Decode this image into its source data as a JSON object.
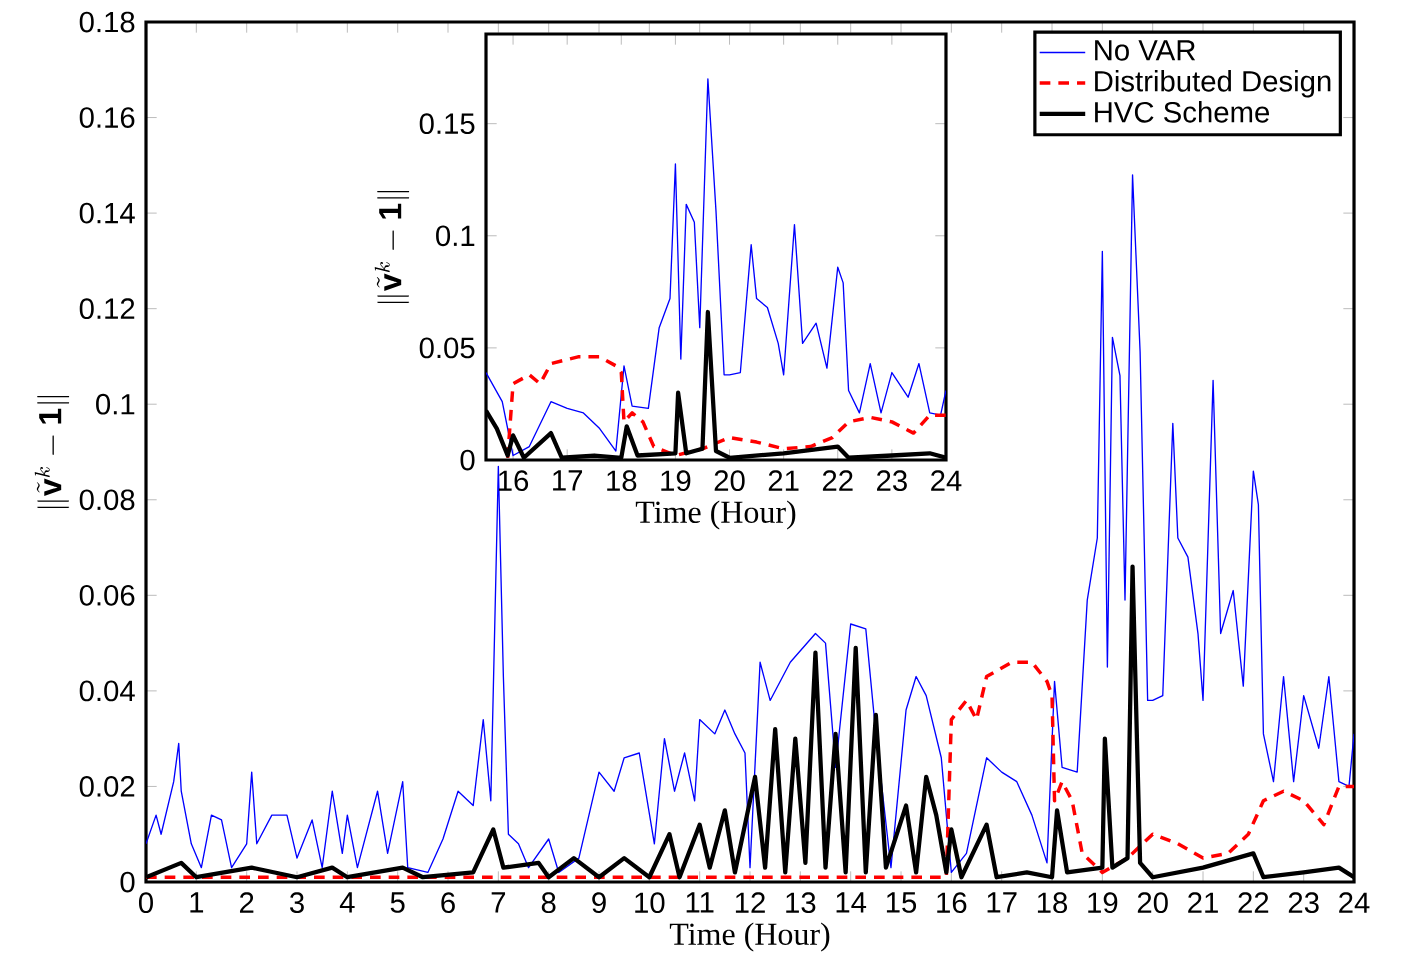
{
  "chart_data": [
    {
      "type": "line",
      "xlabel": "Time (Hour)",
      "ylabel": "\\|\\tilde{\\mathbf{v}}^k-\\mathbf{1}\\|",
      "xlim": [
        0,
        24
      ],
      "ylim": [
        0,
        0.18
      ],
      "xticks": [
        0,
        1,
        2,
        3,
        4,
        5,
        6,
        7,
        8,
        9,
        10,
        11,
        12,
        13,
        14,
        15,
        16,
        17,
        18,
        19,
        20,
        21,
        22,
        23,
        24
      ],
      "yticks": [
        0,
        0.02,
        0.04,
        0.06,
        0.08,
        0.1,
        0.12,
        0.14,
        0.16,
        0.18
      ],
      "legend": "top right",
      "grid": false,
      "series": [
        {
          "name": "No VAR",
          "color": "#0000ff",
          "line_style": "solid",
          "x": [
            0,
            0.2,
            0.3,
            0.55,
            0.65,
            0.7,
            0.9,
            1.1,
            1.3,
            1.5,
            1.7,
            2.0,
            2.1,
            2.2,
            2.5,
            2.8,
            3.0,
            3.3,
            3.5,
            3.7,
            3.9,
            4.0,
            4.2,
            4.6,
            4.8,
            5.1,
            5.2,
            5.6,
            5.9,
            6.2,
            6.5,
            6.7,
            6.85,
            7.0,
            7.1,
            7.2,
            7.4,
            7.6,
            8.0,
            8.2,
            8.6,
            9.0,
            9.3,
            9.5,
            9.8,
            10.1,
            10.3,
            10.5,
            10.7,
            10.9,
            11.0,
            11.3,
            11.5,
            11.7,
            11.9,
            12.0,
            12.2,
            12.4,
            12.8,
            13.3,
            13.5,
            13.7,
            14.0,
            14.3,
            14.5,
            14.8,
            15.1,
            15.3,
            15.5,
            15.8,
            16.0,
            16.3,
            16.7,
            17.0,
            17.3,
            17.6,
            17.9,
            18.05,
            18.2,
            18.5,
            18.7,
            18.9,
            19.0,
            19.1,
            19.2,
            19.35,
            19.45,
            19.6,
            19.75,
            19.9,
            20.0,
            20.2,
            20.4,
            20.5,
            20.7,
            20.9,
            21.0,
            21.2,
            21.35,
            21.6,
            21.8,
            22.0,
            22.1,
            22.2,
            22.4,
            22.6,
            22.8,
            23.0,
            23.3,
            23.5,
            23.7,
            23.9,
            24
          ],
          "values": [
            0.008,
            0.014,
            0.01,
            0.021,
            0.029,
            0.019,
            0.008,
            0.003,
            0.014,
            0.013,
            0.003,
            0.008,
            0.023,
            0.008,
            0.014,
            0.014,
            0.005,
            0.013,
            0.003,
            0.019,
            0.006,
            0.014,
            0.003,
            0.019,
            0.006,
            0.021,
            0.003,
            0.002,
            0.009,
            0.019,
            0.016,
            0.034,
            0.017,
            0.087,
            0.043,
            0.01,
            0.008,
            0.003,
            0.009,
            0.002,
            0.005,
            0.023,
            0.019,
            0.026,
            0.027,
            0.008,
            0.03,
            0.019,
            0.027,
            0.017,
            0.034,
            0.031,
            0.036,
            0.031,
            0.027,
            0.003,
            0.046,
            0.038,
            0.046,
            0.052,
            0.05,
            0.024,
            0.054,
            0.053,
            0.031,
            0.003,
            0.036,
            0.043,
            0.039,
            0.026,
            0.002,
            0.006,
            0.026,
            0.023,
            0.021,
            0.014,
            0.004,
            0.042,
            0.024,
            0.023,
            0.059,
            0.072,
            0.132,
            0.045,
            0.114,
            0.106,
            0.059,
            0.148,
            0.111,
            0.038,
            0.038,
            0.039,
            0.096,
            0.072,
            0.068,
            0.052,
            0.038,
            0.105,
            0.052,
            0.061,
            0.041,
            0.086,
            0.079,
            0.031,
            0.021,
            0.043,
            0.021,
            0.039,
            0.028,
            0.043,
            0.021,
            0.02,
            0.031
          ]
        },
        {
          "name": "Distributed Design",
          "color": "#ff0000",
          "line_style": "dashed",
          "x": [
            0,
            15.9,
            16.0,
            16.3,
            16.5,
            16.7,
            17.2,
            17.6,
            17.9,
            18.0,
            18.05,
            18.2,
            18.4,
            18.6,
            19.0,
            19.5,
            20.0,
            20.5,
            21.0,
            21.5,
            21.9,
            22.2,
            22.6,
            23.0,
            23.4,
            23.7,
            24
          ],
          "values": [
            0.001,
            0.001,
            0.034,
            0.038,
            0.034,
            0.043,
            0.046,
            0.046,
            0.042,
            0.039,
            0.017,
            0.021,
            0.017,
            0.006,
            0.002,
            0.005,
            0.01,
            0.008,
            0.005,
            0.006,
            0.01,
            0.017,
            0.019,
            0.017,
            0.012,
            0.02,
            0.02
          ]
        },
        {
          "name": "HVC Scheme",
          "color": "#000000",
          "line_style": "solid",
          "x": [
            0,
            0.7,
            1,
            2.1,
            3,
            3.7,
            4,
            5.1,
            5.5,
            6.5,
            6.9,
            7.1,
            7.8,
            8,
            8.5,
            9,
            9.5,
            10,
            10.4,
            10.6,
            11.0,
            11.2,
            11.5,
            11.7,
            12.1,
            12.3,
            12.5,
            12.7,
            12.9,
            13.1,
            13.3,
            13.5,
            13.7,
            13.9,
            14.1,
            14.3,
            14.5,
            14.7,
            15.1,
            15.3,
            15.5,
            15.7,
            15.9,
            16.0,
            16.2,
            16.7,
            16.9,
            17.5,
            18.0,
            18.1,
            18.3,
            19.0,
            19.05,
            19.2,
            19.5,
            19.6,
            19.75,
            20,
            21,
            22,
            22.2,
            23,
            23.7,
            24
          ],
          "values": [
            0.001,
            0.004,
            0.001,
            0.003,
            0.001,
            0.003,
            0.001,
            0.003,
            0.001,
            0.002,
            0.011,
            0.003,
            0.004,
            0.001,
            0.005,
            0.001,
            0.005,
            0.001,
            0.01,
            0.001,
            0.012,
            0.003,
            0.015,
            0.002,
            0.022,
            0.003,
            0.032,
            0.002,
            0.03,
            0.004,
            0.048,
            0.003,
            0.031,
            0.002,
            0.049,
            0.002,
            0.035,
            0.003,
            0.016,
            0.002,
            0.022,
            0.014,
            0.002,
            0.011,
            0.001,
            0.012,
            0.001,
            0.002,
            0.001,
            0.015,
            0.002,
            0.003,
            0.03,
            0.003,
            0.005,
            0.066,
            0.004,
            0.001,
            0.003,
            0.006,
            0.001,
            0.002,
            0.003,
            0.001
          ]
        }
      ]
    },
    {
      "type": "line",
      "xlabel": "Time (Hour)",
      "ylabel": "\\|\\tilde{\\mathbf{v}}^k-\\mathbf{1}\\|",
      "xlim": [
        15.5,
        24
      ],
      "ylim": [
        0,
        0.19
      ],
      "xticks": [
        16,
        17,
        18,
        19,
        20,
        21,
        22,
        23,
        24
      ],
      "yticks": [
        0,
        0.05,
        0.1,
        0.15
      ],
      "grid": false,
      "series": [
        {
          "color": "#0000ff",
          "line_style": "solid",
          "x": [
            15.5,
            15.8,
            16.0,
            16.3,
            16.7,
            17.0,
            17.3,
            17.6,
            17.9,
            18.05,
            18.2,
            18.5,
            18.7,
            18.9,
            19.0,
            19.1,
            19.2,
            19.35,
            19.45,
            19.6,
            19.75,
            19.9,
            20.0,
            20.2,
            20.4,
            20.5,
            20.7,
            20.9,
            21.0,
            21.2,
            21.35,
            21.6,
            21.8,
            22.0,
            22.1,
            22.2,
            22.4,
            22.6,
            22.8,
            23.0,
            23.3,
            23.5,
            23.7,
            23.9,
            24
          ],
          "values": [
            0.039,
            0.026,
            0.002,
            0.006,
            0.026,
            0.023,
            0.021,
            0.014,
            0.004,
            0.042,
            0.024,
            0.023,
            0.059,
            0.072,
            0.132,
            0.045,
            0.114,
            0.106,
            0.059,
            0.17,
            0.111,
            0.038,
            0.038,
            0.039,
            0.096,
            0.072,
            0.068,
            0.052,
            0.038,
            0.105,
            0.052,
            0.061,
            0.041,
            0.086,
            0.079,
            0.031,
            0.021,
            0.043,
            0.021,
            0.039,
            0.028,
            0.043,
            0.021,
            0.02,
            0.031
          ]
        },
        {
          "color": "#ff0000",
          "line_style": "dashed",
          "x": [
            15.9,
            16.0,
            16.3,
            16.5,
            16.7,
            17.2,
            17.6,
            17.9,
            18.0,
            18.05,
            18.2,
            18.4,
            18.6,
            19.0,
            19.5,
            20.0,
            20.5,
            21.0,
            21.5,
            21.9,
            22.2,
            22.6,
            23.0,
            23.4,
            23.7,
            24
          ],
          "values": [
            0.001,
            0.034,
            0.038,
            0.034,
            0.043,
            0.046,
            0.046,
            0.042,
            0.039,
            0.017,
            0.021,
            0.017,
            0.006,
            0.002,
            0.005,
            0.01,
            0.008,
            0.005,
            0.006,
            0.01,
            0.017,
            0.019,
            0.017,
            0.012,
            0.02,
            0.02
          ]
        },
        {
          "color": "#000000",
          "line_style": "solid",
          "x": [
            15.5,
            15.7,
            15.9,
            16.0,
            16.2,
            16.7,
            16.9,
            17.5,
            18.0,
            18.1,
            18.3,
            19.0,
            19.05,
            19.2,
            19.5,
            19.6,
            19.75,
            20,
            21,
            22,
            22.2,
            23,
            23.7,
            24
          ],
          "values": [
            0.022,
            0.014,
            0.002,
            0.011,
            0.001,
            0.012,
            0.001,
            0.002,
            0.001,
            0.015,
            0.002,
            0.003,
            0.03,
            0.003,
            0.005,
            0.066,
            0.004,
            0.001,
            0.003,
            0.006,
            0.001,
            0.002,
            0.003,
            0.001
          ]
        }
      ]
    }
  ]
}
